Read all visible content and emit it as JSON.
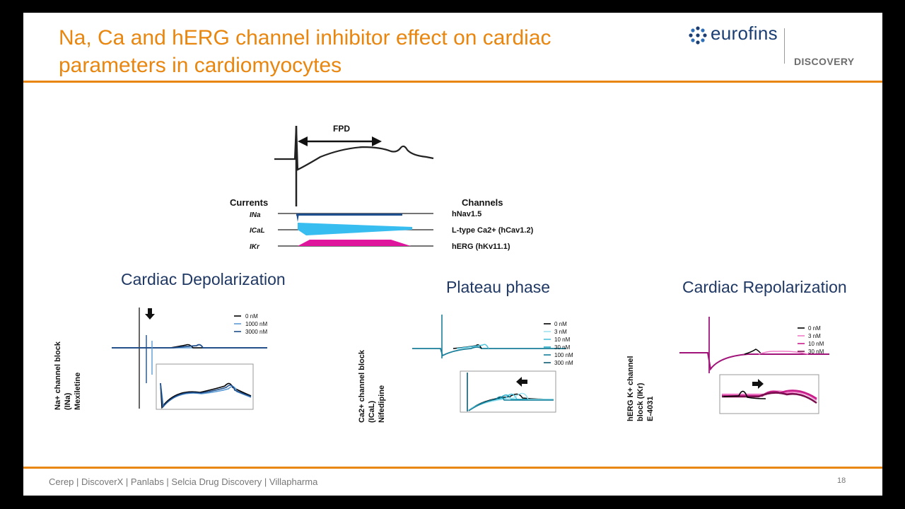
{
  "title": "Na, Ca and hERG channel inhibitor effect on cardiac parameters in cardiomyocytes",
  "logo": {
    "word": "eurofins",
    "sub": "DISCOVERY"
  },
  "diagram": {
    "fpd_label": "FPD",
    "currents_header": "Currents",
    "channels_header": "Channels",
    "rows": [
      {
        "current": "INa",
        "channel": "hNav1.5"
      },
      {
        "current": "ICaL",
        "channel": "L-type Ca2+ (hCav1.2)"
      },
      {
        "current": "IKr",
        "channel": "hERG (hKv11.1)"
      }
    ]
  },
  "panels": [
    {
      "heading": "Cardiac Depolarization",
      "ylabel_lines": [
        "Na+ channel block",
        "(INa)",
        "Mexiletine"
      ],
      "legend": [
        "0 nM",
        "1000 nM",
        "3000 nM"
      ],
      "colors": [
        "#000000",
        "#5b9bd5",
        "#1f4e8c"
      ]
    },
    {
      "heading": "Plateau phase",
      "ylabel_lines": [
        "Ca2+ channel block",
        "(ICaL)",
        "Nifedipine"
      ],
      "legend": [
        "0 nM",
        "3 nM",
        "10 nM",
        "30 nM",
        "100 nM",
        "300 nM"
      ],
      "colors": [
        "#000000",
        "#9ee3f0",
        "#4cc3dd",
        "#1fa7c4",
        "#137f9a",
        "#0d5a72"
      ]
    },
    {
      "heading": "Cardiac Repolarization",
      "ylabel_lines": [
        "hERG K+ channel",
        "block (IKr)",
        "E-4031"
      ],
      "legend": [
        "0 nM",
        "3 nM",
        "10 nM",
        "30 nM"
      ],
      "colors": [
        "#000000",
        "#f07cc8",
        "#c81e8a",
        "#7a0f4f"
      ]
    }
  ],
  "footer": "Cerep | DiscoverX | Panlabs | Selcia Drug Discovery | Villapharma",
  "page_number": "18",
  "theme": {
    "accent": "#E8860F",
    "heading": "#1f3864",
    "brand": "#1a3e73"
  }
}
